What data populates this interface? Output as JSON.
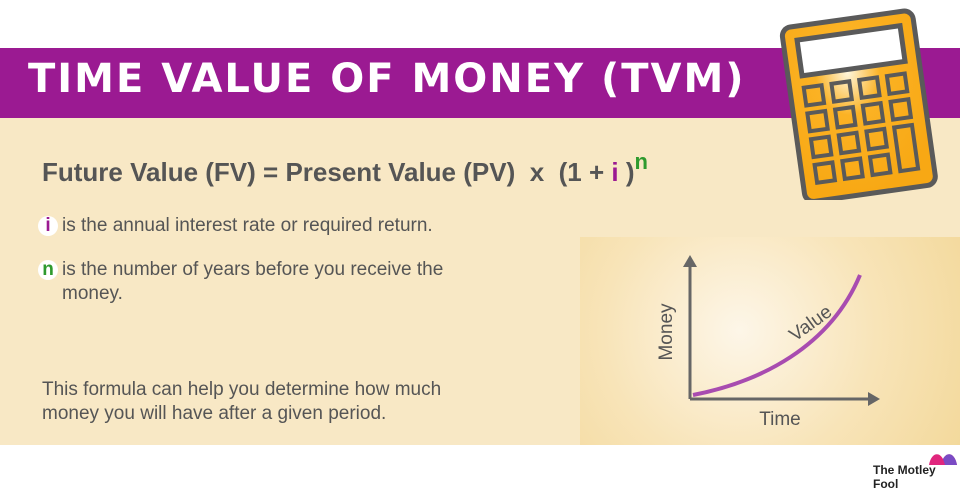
{
  "title": "TIME VALUE OF MONEY (TVM)",
  "formula": {
    "lhs": "Future Value (FV)",
    "eq": "=",
    "pv": "Present Value (PV)",
    "x": "x",
    "open": "(1 +",
    "i": "i",
    "close": ")",
    "n": "n"
  },
  "bullets": [
    {
      "badge": "i",
      "text": "is the annual interest rate or required return.",
      "color": "#9b1a92"
    },
    {
      "badge": "n",
      "text": "is the number of years before you receive the money.",
      "color": "#2e9a2e"
    }
  ],
  "note": "This formula can help you determine how much money you will have after a given period.",
  "graph": {
    "y_label": "Money",
    "x_label": "Time",
    "curve_label": "Value"
  },
  "logo": "The Motley Fool",
  "colors": {
    "purple": "#9b1a92",
    "beige": "#f8e8c5",
    "green": "#2e9a2e",
    "calculator": "#fbb224"
  }
}
